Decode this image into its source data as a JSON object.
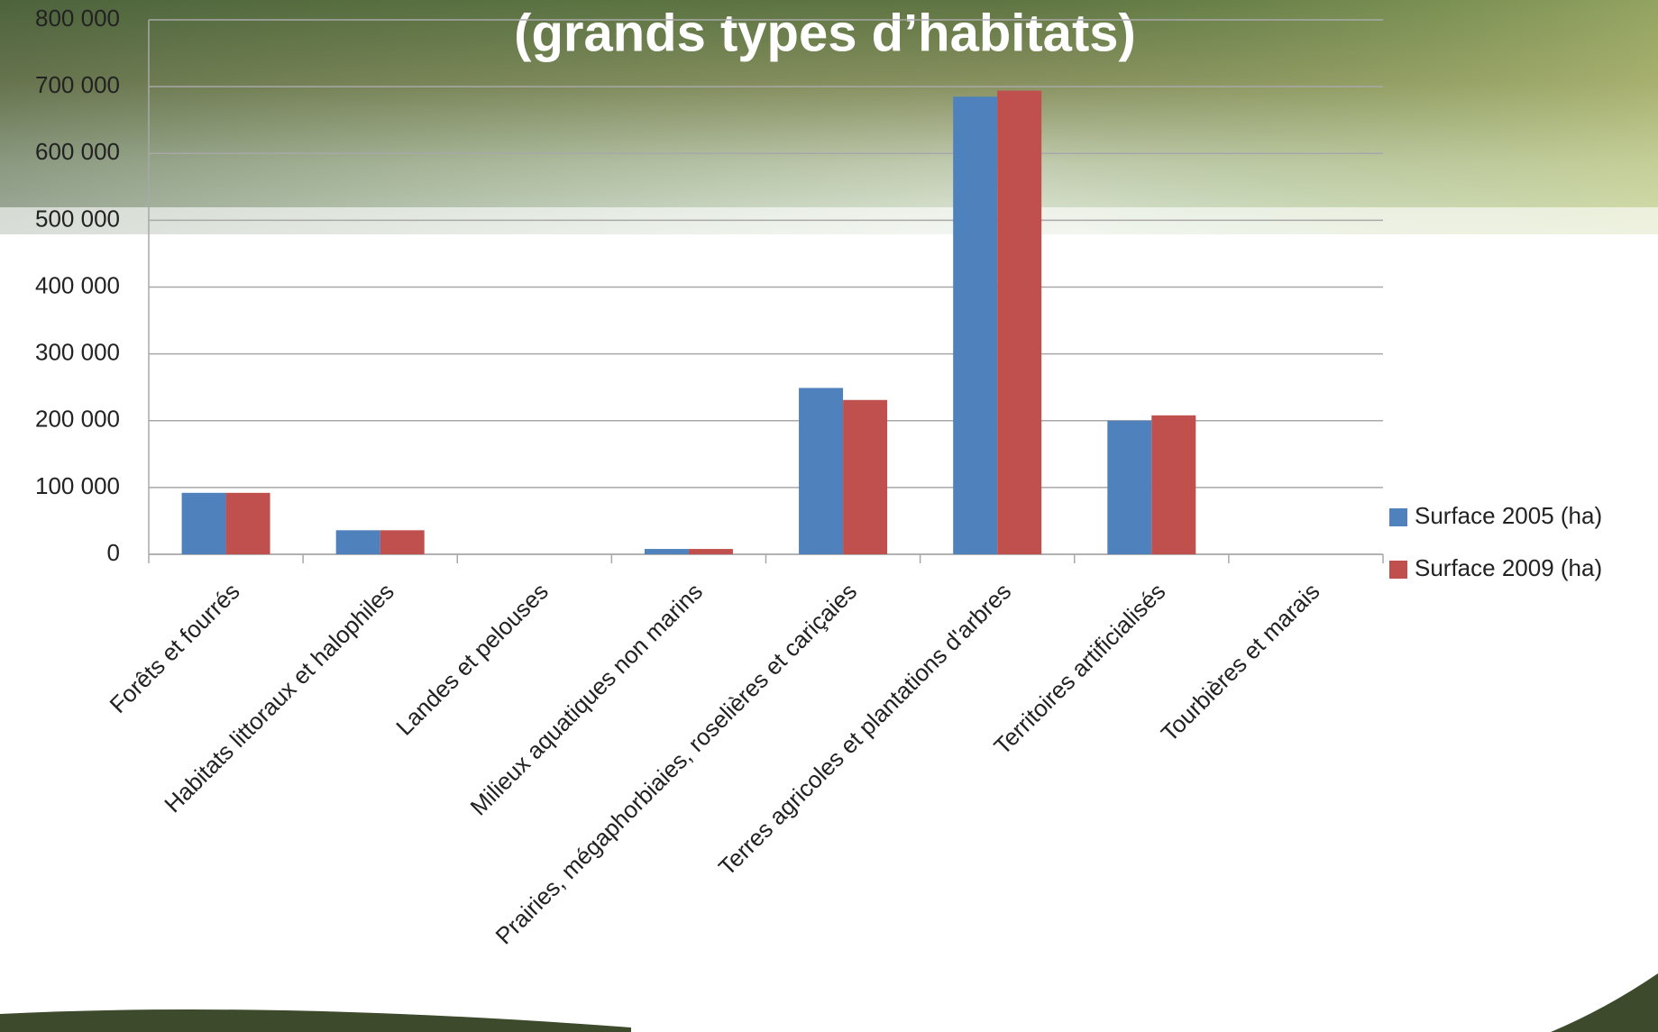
{
  "chart_data": {
    "type": "bar",
    "title": "(grands types d’habitats)",
    "categories": [
      "Forêts et fourrés",
      "Habitats littoraux et halophiles",
      "Landes et pelouses",
      "Milieux aquatiques non marins",
      "Prairies, mégaphorbiaies, roselières et cariçaies",
      "Terres agricoles et plantations d'arbres",
      "Territoires artificialisés",
      "Tourbières et marais"
    ],
    "series": [
      {
        "name": "Surface 2005 (ha)",
        "color": "#4f81bd",
        "values": [
          92000,
          36000,
          0,
          8000,
          249000,
          685000,
          200000,
          0
        ]
      },
      {
        "name": "Surface 2009 (ha)",
        "color": "#c0504d",
        "values": [
          92000,
          36000,
          0,
          8000,
          231000,
          694000,
          208000,
          0
        ]
      }
    ],
    "ylim": [
      0,
      800000
    ],
    "yticks": [
      0,
      {
        "value": 100000,
        "label": "100 000"
      },
      {
        "value": 200000,
        "label": "200 000"
      },
      {
        "value": 300000,
        "label": "300 000"
      },
      {
        "value": 400000,
        "label": "400 000"
      },
      {
        "value": 500000,
        "label": "500 000"
      },
      {
        "value": 600000,
        "label": "600 000"
      },
      {
        "value": 700000,
        "label": "700 000"
      },
      {
        "value": 800000,
        "label": "800 000"
      }
    ],
    "grid": true,
    "legend": "right"
  }
}
